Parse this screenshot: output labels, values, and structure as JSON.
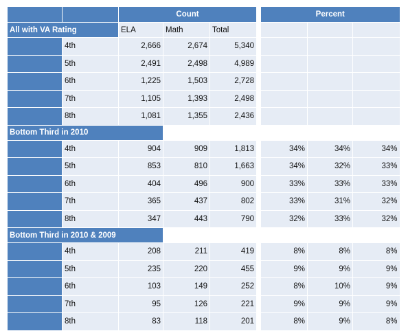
{
  "header": {
    "count_label": "Count",
    "percent_label": "Percent",
    "col_ela": "ELA",
    "col_math": "Math",
    "col_total": "Total"
  },
  "sections": [
    {
      "title": "All with VA Rating",
      "rows": [
        {
          "grade": "4th",
          "ela": "2,666",
          "math": "2,674",
          "total": "5,340",
          "pct_ela": "",
          "pct_math": "",
          "pct_total": ""
        },
        {
          "grade": "5th",
          "ela": "2,491",
          "math": "2,498",
          "total": "4,989",
          "pct_ela": "",
          "pct_math": "",
          "pct_total": ""
        },
        {
          "grade": "6th",
          "ela": "1,225",
          "math": "1,503",
          "total": "2,728",
          "pct_ela": "",
          "pct_math": "",
          "pct_total": ""
        },
        {
          "grade": "7th",
          "ela": "1,105",
          "math": "1,393",
          "total": "2,498",
          "pct_ela": "",
          "pct_math": "",
          "pct_total": ""
        },
        {
          "grade": "8th",
          "ela": "1,081",
          "math": "1,355",
          "total": "2,436",
          "pct_ela": "",
          "pct_math": "",
          "pct_total": ""
        }
      ]
    },
    {
      "title": "Bottom Third in 2010",
      "rows": [
        {
          "grade": "4th",
          "ela": "904",
          "math": "909",
          "total": "1,813",
          "pct_ela": "34%",
          "pct_math": "34%",
          "pct_total": "34%"
        },
        {
          "grade": "5th",
          "ela": "853",
          "math": "810",
          "total": "1,663",
          "pct_ela": "34%",
          "pct_math": "32%",
          "pct_total": "33%"
        },
        {
          "grade": "6th",
          "ela": "404",
          "math": "496",
          "total": "900",
          "pct_ela": "33%",
          "pct_math": "33%",
          "pct_total": "33%"
        },
        {
          "grade": "7th",
          "ela": "365",
          "math": "437",
          "total": "802",
          "pct_ela": "33%",
          "pct_math": "31%",
          "pct_total": "32%"
        },
        {
          "grade": "8th",
          "ela": "347",
          "math": "443",
          "total": "790",
          "pct_ela": "32%",
          "pct_math": "33%",
          "pct_total": "32%"
        }
      ]
    },
    {
      "title": "Bottom Third in 2010 & 2009",
      "rows": [
        {
          "grade": "4th",
          "ela": "208",
          "math": "211",
          "total": "419",
          "pct_ela": "8%",
          "pct_math": "8%",
          "pct_total": "8%"
        },
        {
          "grade": "5th",
          "ela": "235",
          "math": "220",
          "total": "455",
          "pct_ela": "9%",
          "pct_math": "9%",
          "pct_total": "9%"
        },
        {
          "grade": "6th",
          "ela": "103",
          "math": "149",
          "total": "252",
          "pct_ela": "8%",
          "pct_math": "10%",
          "pct_total": "9%"
        },
        {
          "grade": "7th",
          "ela": "95",
          "math": "126",
          "total": "221",
          "pct_ela": "9%",
          "pct_math": "9%",
          "pct_total": "9%"
        },
        {
          "grade": "8th",
          "ela": "83",
          "math": "118",
          "total": "201",
          "pct_ela": "8%",
          "pct_math": "9%",
          "pct_total": "8%"
        }
      ]
    }
  ]
}
